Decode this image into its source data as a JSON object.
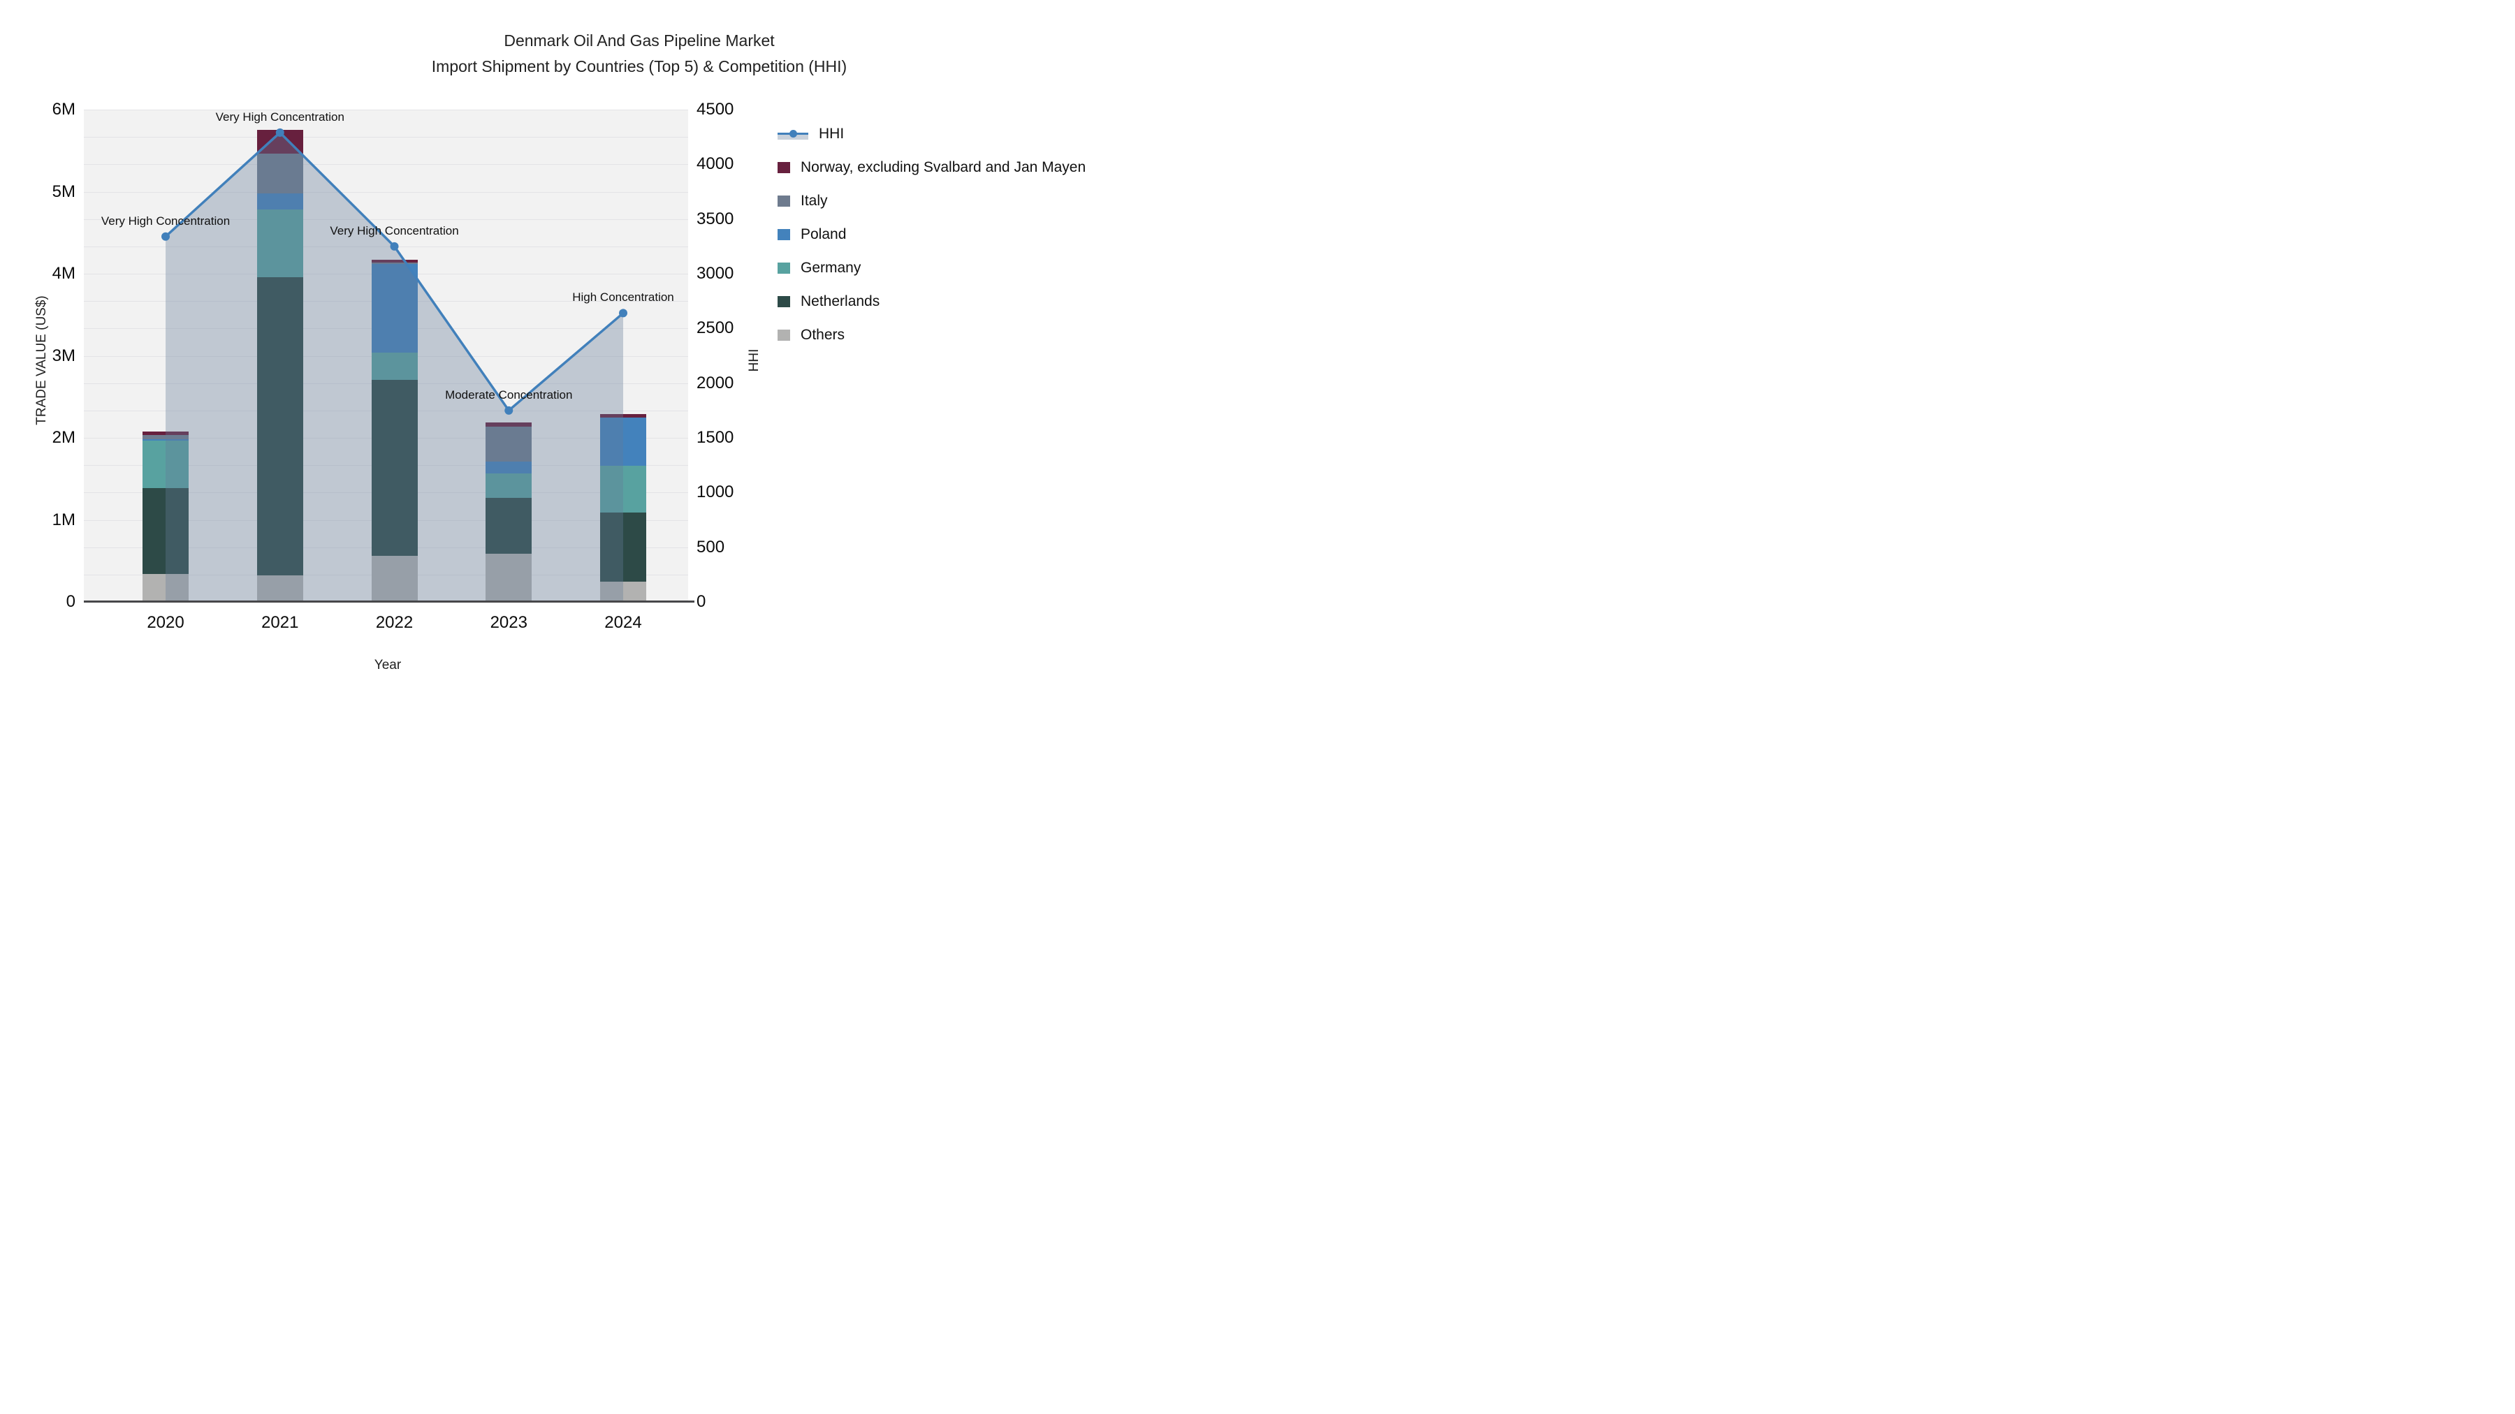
{
  "title": {
    "line1": "Denmark Oil And Gas Pipeline Market",
    "line2": "Import Shipment by Countries (Top 5) & Competition (HHI)"
  },
  "legend": {
    "items": [
      {
        "label": "HHI",
        "swatch": "line"
      },
      {
        "label": "Norway, excluding Svalbard and Jan Mayen",
        "swatch": "#67203e"
      },
      {
        "label": "Italy",
        "swatch": "#6e7b8e"
      },
      {
        "label": "Poland",
        "swatch": "#4382bc"
      },
      {
        "label": "Germany",
        "swatch": "#58a2a0"
      },
      {
        "label": "Netherlands",
        "swatch": "#2d4a47"
      },
      {
        "label": "Others",
        "swatch": "#b2b2b1"
      }
    ]
  },
  "chart_data": {
    "type": "bar",
    "subtype": "stacked-bars-with-line",
    "categories": [
      "2020",
      "2021",
      "2022",
      "2023",
      "2024"
    ],
    "bar_unit": "M US$",
    "series": [
      {
        "name": "Others",
        "color": "#b2b2b1",
        "values": [
          0.34,
          0.32,
          0.56,
          0.59,
          0.25
        ]
      },
      {
        "name": "Netherlands",
        "color": "#2d4a47",
        "values": [
          1.05,
          3.64,
          2.15,
          0.68,
          0.84
        ]
      },
      {
        "name": "Germany",
        "color": "#58a2a0",
        "values": [
          0.58,
          0.82,
          0.33,
          0.3,
          0.57
        ]
      },
      {
        "name": "Poland",
        "color": "#4382bc",
        "values": [
          0.01,
          0.2,
          1.08,
          0.14,
          0.59
        ]
      },
      {
        "name": "Italy",
        "color": "#6e7b8e",
        "values": [
          0.05,
          0.48,
          0.02,
          0.43,
          0.0
        ]
      },
      {
        "name": "Norway, excluding Svalbard and Jan Mayen",
        "color": "#67203e",
        "values": [
          0.05,
          0.29,
          0.03,
          0.05,
          0.04
        ]
      }
    ],
    "line_series": {
      "name": "HHI",
      "color": "#4180bb",
      "area_color": "rgba(100,122,152,0.35)",
      "values": [
        3340,
        4290,
        3250,
        1750,
        2640
      ]
    },
    "annotations": [
      {
        "year": "2020",
        "text": "Very High Concentration"
      },
      {
        "year": "2021",
        "text": "Very High Concentration"
      },
      {
        "year": "2022",
        "text": "Very High Concentration"
      },
      {
        "year": "2023",
        "text": "Moderate Concentration"
      },
      {
        "year": "2024",
        "text": "High Concentration"
      }
    ],
    "y_left": {
      "label": "TRADE VALUE (US$)",
      "max_millions": 6,
      "tick_labels": [
        "0",
        "1M",
        "2M",
        "3M",
        "4M",
        "5M",
        "6M"
      ]
    },
    "y_right": {
      "label": "HHI",
      "max": 4500,
      "tick_step": 500,
      "grid_step": 250,
      "tick_labels": [
        "0",
        "500",
        "1000",
        "1500",
        "2000",
        "2500",
        "3000",
        "3500",
        "4000",
        "4500"
      ]
    },
    "x": {
      "label": "Year"
    },
    "layout_hints": {
      "legend_position": "right",
      "grid": "horizontal",
      "plot_background": "#f2f2f2"
    }
  }
}
